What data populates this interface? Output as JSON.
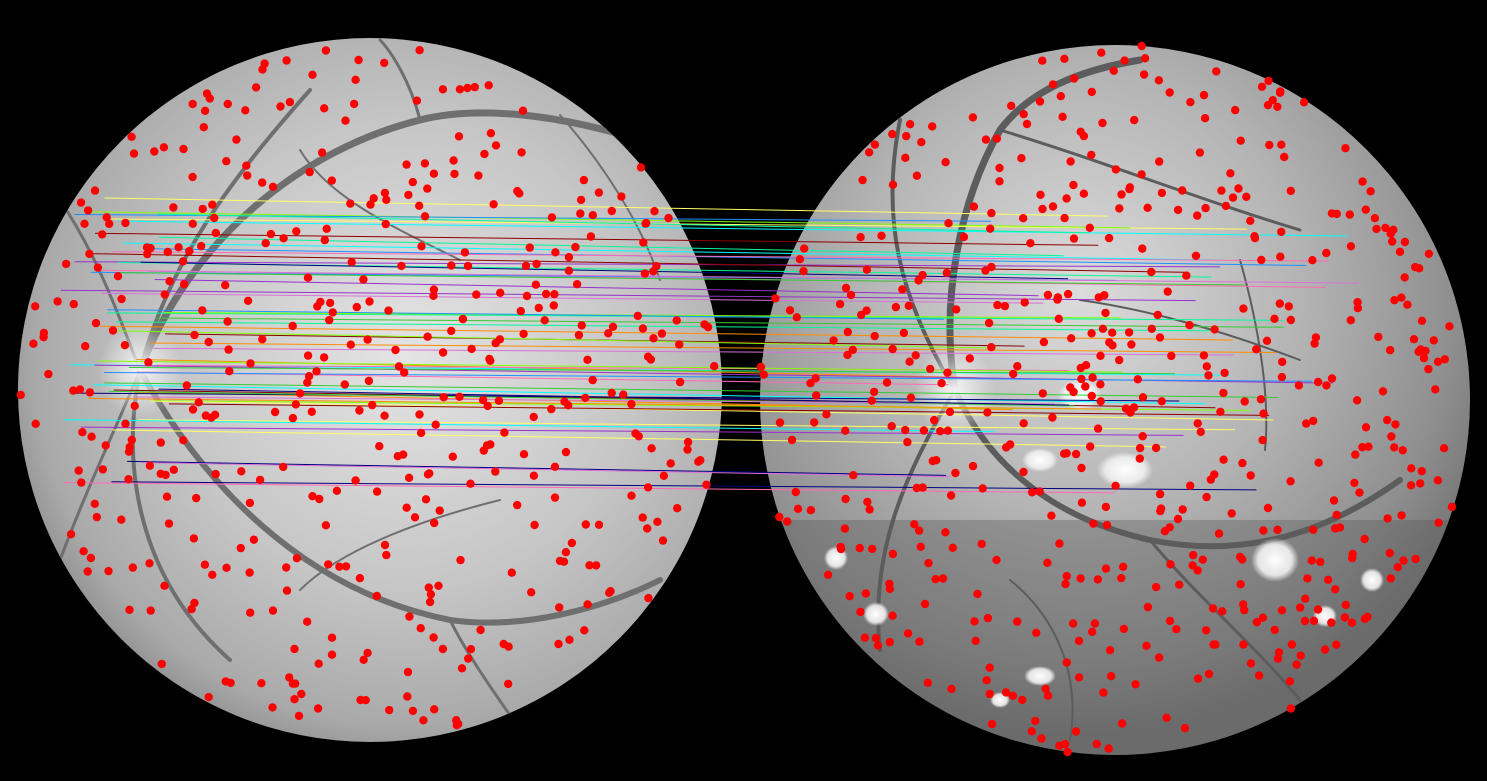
{
  "image": {
    "background_color": "#000000",
    "retina_tone": "#c8c8c8",
    "keypoint_color": "#ff0000",
    "match_line_colors": [
      "#00ffff",
      "#ff8c00",
      "#7fff00",
      "#9932cc",
      "#1e90ff",
      "#ffff66",
      "#ff69b4",
      "#00fa9a",
      "#8b0000",
      "#000080",
      "#32cd32",
      "#da70d6"
    ]
  }
}
